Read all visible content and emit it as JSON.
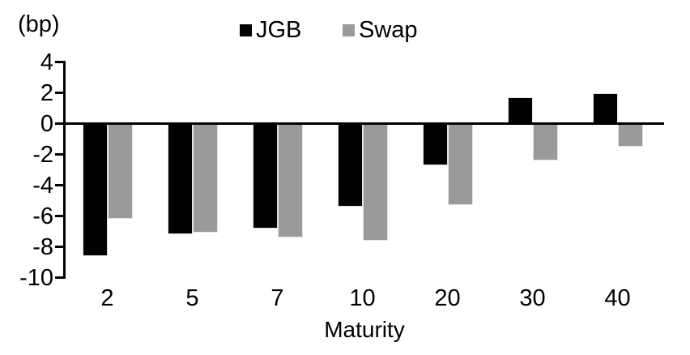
{
  "chart": {
    "unit_label": "(bp)"
  },
  "chart_data": {
    "type": "bar",
    "title": "",
    "categories": [
      "2",
      "5",
      "7",
      "10",
      "20",
      "30",
      "40"
    ],
    "series": [
      {
        "name": "JGB",
        "color": "#000000",
        "values": [
          -8.6,
          -7.2,
          -6.8,
          -5.4,
          -2.7,
          1.7,
          2.0
        ]
      },
      {
        "name": "Swap",
        "color": "#9a9a9a",
        "values": [
          -6.2,
          -7.1,
          -7.4,
          -7.6,
          -5.3,
          -2.4,
          -1.5
        ]
      }
    ],
    "xlabel": "Maturity",
    "ylabel": "(bp)",
    "y_ticks": [
      4,
      2,
      0,
      -2,
      -4,
      -6,
      -8,
      -10
    ],
    "ylim": [
      -10,
      4
    ],
    "grid": false,
    "legend_position": "top-center",
    "axis_color": "#000000",
    "background": "#ffffff"
  }
}
